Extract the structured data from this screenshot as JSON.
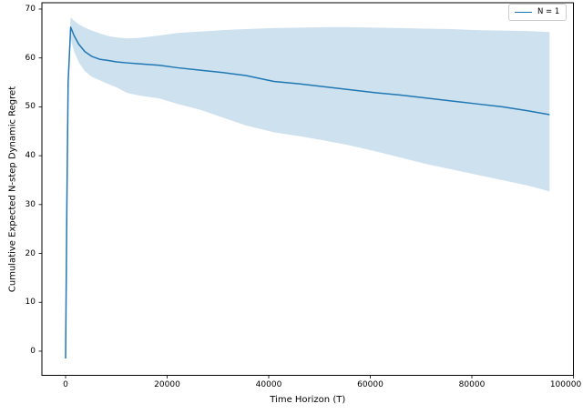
{
  "figure": {
    "background": "#ffffff"
  },
  "axes": {
    "x_label": "Time Horizon (T)",
    "y_label": "Cumulative Expected N-step Dynamic Regret",
    "x_ticks": [
      "0",
      "20000",
      "40000",
      "60000",
      "80000",
      "100000"
    ],
    "y_ticks": [
      "0",
      "10",
      "20",
      "30",
      "40",
      "50",
      "60",
      "70"
    ]
  },
  "legend": {
    "position": "upper right",
    "entries": [
      {
        "label": "N = 1",
        "color": "#1f77b4"
      }
    ]
  },
  "chart_data": {
    "type": "line",
    "title": "",
    "xlabel": "Time Horizon (T)",
    "ylabel": "Cumulative Expected N-step Dynamic Regret",
    "xlim": [
      -4665,
      100000
    ],
    "ylim": [
      -4.94,
      71.3
    ],
    "x_tick_values": [
      0,
      20000,
      40000,
      60000,
      80000,
      100000
    ],
    "y_tick_values": [
      0,
      10,
      20,
      30,
      40,
      50,
      60,
      70
    ],
    "grid": false,
    "legend_position": "upper right",
    "series": [
      {
        "name": "N = 1",
        "color": "#1f77b4",
        "band_color": "rgba(31,119,180,0.22)",
        "x": [
          0,
          250,
          500,
          1000,
          1700,
          2600,
          3800,
          5200,
          6800,
          8300,
          10000,
          12000,
          14500,
          18500,
          22000,
          26500,
          31000,
          35500,
          41000,
          46000,
          51000,
          56000,
          61000,
          66000,
          71000,
          76000,
          81000,
          86000,
          91000,
          95300
        ],
        "y": [
          -1.5,
          30,
          55,
          66.3,
          64.5,
          62.8,
          61.3,
          60.3,
          59.7,
          59.5,
          59.2,
          59.0,
          58.8,
          58.5,
          58.0,
          57.5,
          57.0,
          56.4,
          55.2,
          54.7,
          54.1,
          53.5,
          52.9,
          52.4,
          51.8,
          51.2,
          50.6,
          50.0,
          49.2,
          48.4
        ],
        "band_lower": [
          -1.7,
          28,
          53,
          63.8,
          61.3,
          59.1,
          57.3,
          56.1,
          55.4,
          54.7,
          54.0,
          52.9,
          52.3,
          51.7,
          50.6,
          49.4,
          47.8,
          46.2,
          44.8,
          44.0,
          43.1,
          42.1,
          40.9,
          39.6,
          38.3,
          37.2,
          36.1,
          35.0,
          33.9,
          32.7
        ],
        "band_upper": [
          -1.3,
          32,
          57,
          68.3,
          67.6,
          66.9,
          66.2,
          65.6,
          65.0,
          64.5,
          64.2,
          64.0,
          64.1,
          64.6,
          65.1,
          65.4,
          65.7,
          65.9,
          66.1,
          66.2,
          66.3,
          66.3,
          66.2,
          66.1,
          66.0,
          65.9,
          65.7,
          65.6,
          65.5,
          65.3
        ]
      }
    ]
  }
}
